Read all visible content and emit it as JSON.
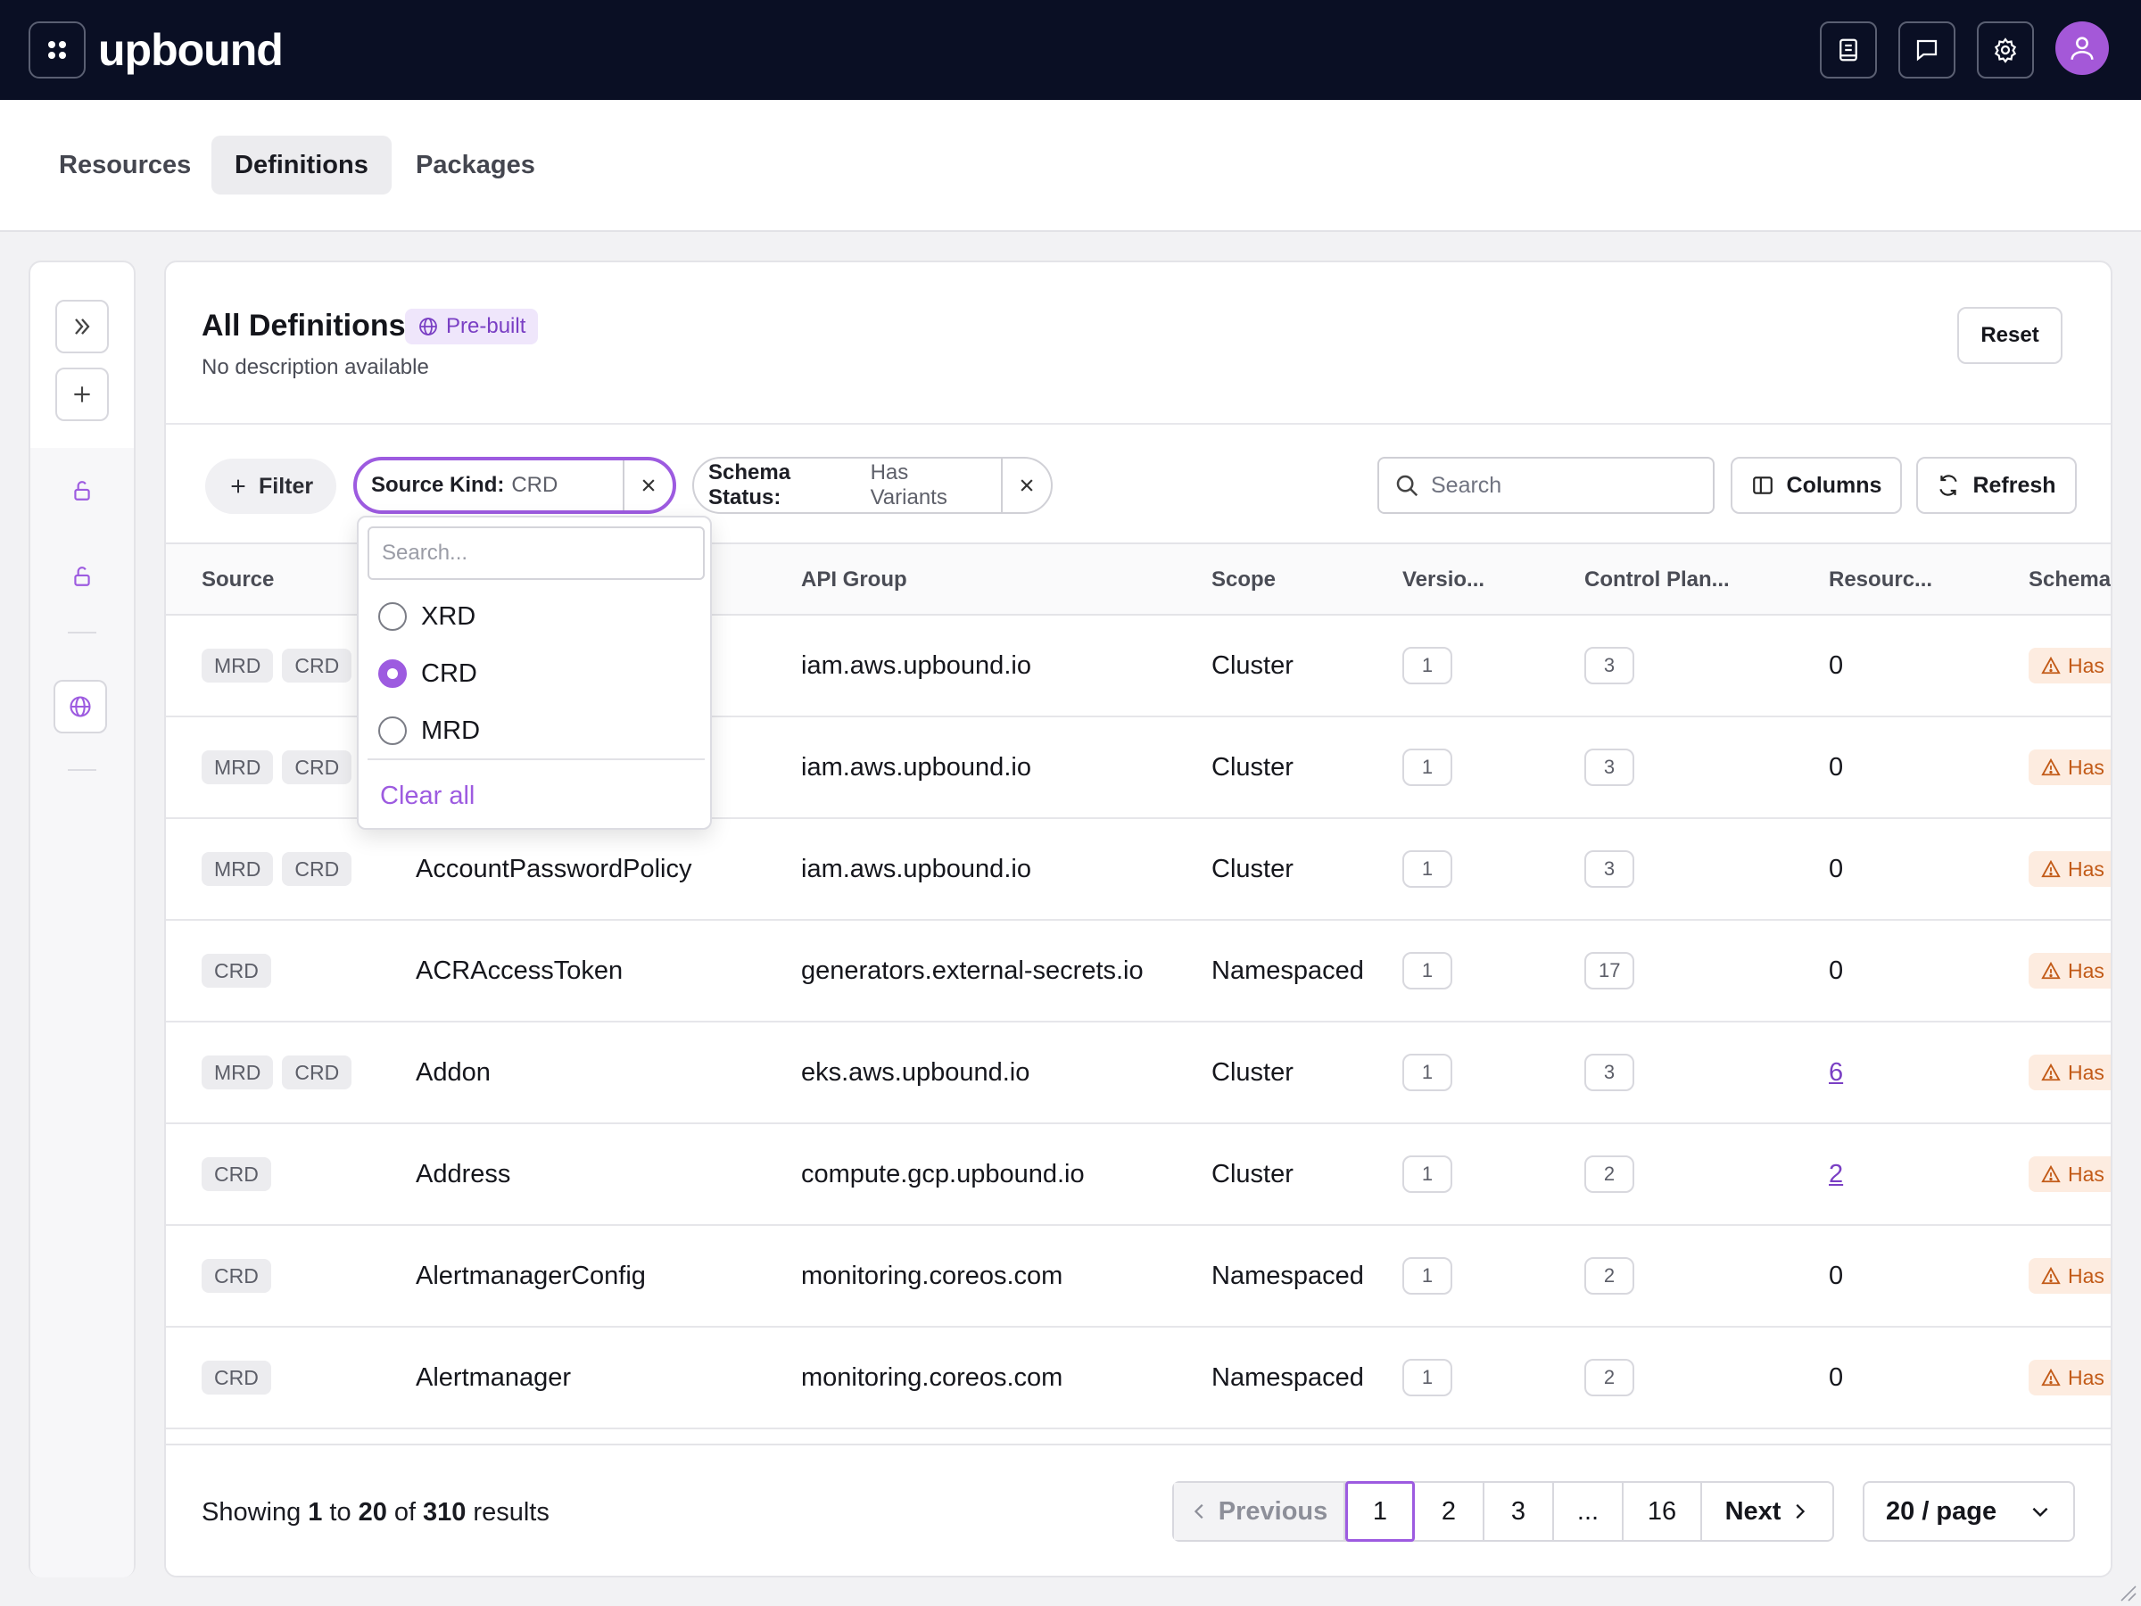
{
  "brand": {
    "name": "upbound"
  },
  "tabs": [
    {
      "label": "Resources"
    },
    {
      "label": "Definitions"
    },
    {
      "label": "Packages"
    }
  ],
  "header": {
    "title": "All Definitions",
    "badge": "Pre-built",
    "description": "No description available",
    "reset_label": "Reset"
  },
  "toolbar": {
    "filter_label": "Filter",
    "chips": [
      {
        "key": "Source Kind:",
        "value": "CRD"
      },
      {
        "key": "Schema Status:",
        "value": "Has Variants"
      }
    ],
    "search_placeholder": "Search",
    "columns_label": "Columns",
    "refresh_label": "Refresh"
  },
  "table": {
    "columns": [
      "Source",
      "API Group",
      "Scope",
      "Versio...",
      "Control Plan...",
      "Resourc...",
      "Schema"
    ],
    "rows": [
      {
        "sources": [
          "MRD",
          "CRD"
        ],
        "name": "",
        "api_group": "iam.aws.upbound.io",
        "scope": "Cluster",
        "versions": "1",
        "control_planes": "3",
        "resources": "0",
        "resources_link": false,
        "schema": "Has"
      },
      {
        "sources": [
          "MRD",
          "CRD"
        ],
        "name": "",
        "api_group": "iam.aws.upbound.io",
        "scope": "Cluster",
        "versions": "1",
        "control_planes": "3",
        "resources": "0",
        "resources_link": false,
        "schema": "Has"
      },
      {
        "sources": [
          "MRD",
          "CRD"
        ],
        "name": "AccountPasswordPolicy",
        "api_group": "iam.aws.upbound.io",
        "scope": "Cluster",
        "versions": "1",
        "control_planes": "3",
        "resources": "0",
        "resources_link": false,
        "schema": "Has"
      },
      {
        "sources": [
          "CRD"
        ],
        "name": "ACRAccessToken",
        "api_group": "generators.external-secrets.io",
        "scope": "Namespaced",
        "versions": "1",
        "control_planes": "17",
        "resources": "0",
        "resources_link": false,
        "schema": "Has"
      },
      {
        "sources": [
          "MRD",
          "CRD"
        ],
        "name": "Addon",
        "api_group": "eks.aws.upbound.io",
        "scope": "Cluster",
        "versions": "1",
        "control_planes": "3",
        "resources": "6",
        "resources_link": true,
        "schema": "Has"
      },
      {
        "sources": [
          "CRD"
        ],
        "name": "Address",
        "api_group": "compute.gcp.upbound.io",
        "scope": "Cluster",
        "versions": "1",
        "control_planes": "2",
        "resources": "2",
        "resources_link": true,
        "schema": "Has"
      },
      {
        "sources": [
          "CRD"
        ],
        "name": "AlertmanagerConfig",
        "api_group": "monitoring.coreos.com",
        "scope": "Namespaced",
        "versions": "1",
        "control_planes": "2",
        "resources": "0",
        "resources_link": false,
        "schema": "Has"
      },
      {
        "sources": [
          "CRD"
        ],
        "name": "Alertmanager",
        "api_group": "monitoring.coreos.com",
        "scope": "Namespaced",
        "versions": "1",
        "control_planes": "2",
        "resources": "0",
        "resources_link": false,
        "schema": "Has"
      }
    ]
  },
  "footer": {
    "showing_prefix": "Showing",
    "from": "1",
    "to_word": "to",
    "to": "20",
    "of_word": "of",
    "total": "310",
    "suffix": "results",
    "pagination": {
      "previous_label": "Previous",
      "pages": [
        "1",
        "2",
        "3",
        "...",
        "16"
      ],
      "current": "1",
      "next_label": "Next"
    },
    "per_page": "20 / page"
  },
  "dropdown": {
    "search_placeholder": "Search...",
    "options": [
      {
        "label": "XRD",
        "selected": false
      },
      {
        "label": "CRD",
        "selected": true
      },
      {
        "label": "MRD",
        "selected": false
      }
    ],
    "clear_label": "Clear all"
  },
  "colors": {
    "topbar": "#0a0f24",
    "accent": "#9d5be0",
    "warning_bg": "#fdece0",
    "warning_text": "#c25a17"
  }
}
